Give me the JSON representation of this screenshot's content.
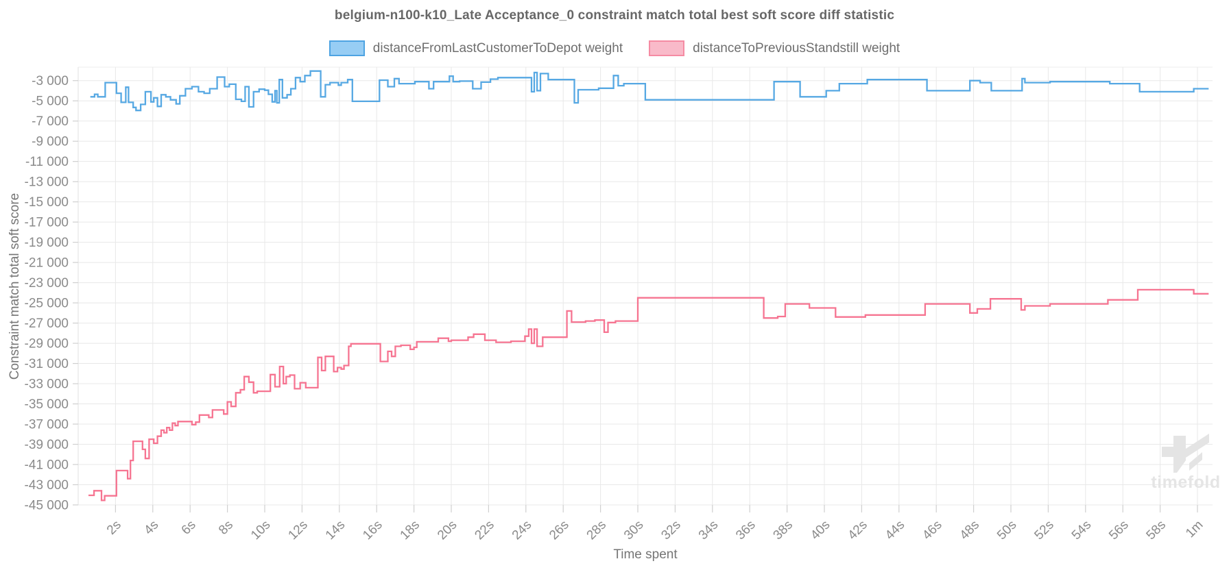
{
  "title": "belgium-n100-k10_Late Acceptance_0 constraint match total best soft score diff statistic",
  "legend": [
    {
      "label": "distanceFromLastCustomerToDepot weight",
      "fill": "#97cdf4",
      "stroke": "#4da3e2"
    },
    {
      "label": "distanceToPreviousStandstill weight",
      "fill": "#f9bac9",
      "stroke": "#f58ba3"
    }
  ],
  "y_axis_title": "Constraint match total soft score",
  "x_axis_title": "Time spent",
  "watermark": "timefold",
  "chart_data": {
    "type": "line",
    "step": true,
    "title": "belgium-n100-k10_Late Acceptance_0 constraint match total best soft score diff statistic",
    "xlabel": "Time spent",
    "ylabel": "Constraint match total soft score",
    "x_unit": "seconds",
    "x_range_seconds": [
      0,
      60.6
    ],
    "y_range": [
      -45000,
      -3000
    ],
    "grid": true,
    "legend_position": "top",
    "y_axis": {
      "tick_values": [
        -3000,
        -5000,
        -7000,
        -9000,
        -11000,
        -13000,
        -15000,
        -17000,
        -19000,
        -21000,
        -23000,
        -25000,
        -27000,
        -29000,
        -31000,
        -33000,
        -35000,
        -37000,
        -39000,
        -41000,
        -43000,
        -45000
      ],
      "tick_labels": [
        "-3 000",
        "-5 000",
        "-7 000",
        "-9 000",
        "-11 000",
        "-13 000",
        "-15 000",
        "-17 000",
        "-19 000",
        "-21 000",
        "-23 000",
        "-25 000",
        "-27 000",
        "-29 000",
        "-31 000",
        "-33 000",
        "-35 000",
        "-37 000",
        "-39 000",
        "-41 000",
        "-43 000",
        "-45 000"
      ]
    },
    "x_axis": {
      "tick_seconds": [
        2,
        4,
        6,
        8,
        10,
        12,
        14,
        16,
        18,
        20,
        22,
        24,
        26,
        28,
        30,
        32,
        34,
        36,
        38,
        40,
        42,
        44,
        46,
        48,
        50,
        52,
        54,
        56,
        58,
        60
      ],
      "tick_labels": [
        "2s",
        "4s",
        "6s",
        "8s",
        "10s",
        "12s",
        "14s",
        "16s",
        "18s",
        "20s",
        "22s",
        "24s",
        "26s",
        "28s",
        "30s",
        "32s",
        "34s",
        "36s",
        "38s",
        "40s",
        "42s",
        "44s",
        "46s",
        "48s",
        "50s",
        "52s",
        "54s",
        "56s",
        "58s",
        "1m"
      ]
    },
    "series": [
      {
        "name": "distanceFromLastCustomerToDepot weight",
        "color": "#4da3e2",
        "points": [
          [
            0.65,
            -4600
          ],
          [
            0.88,
            -4350
          ],
          [
            1.05,
            -4600
          ],
          [
            1.45,
            -3200
          ],
          [
            2.05,
            -4250
          ],
          [
            2.3,
            -5150
          ],
          [
            2.55,
            -3650
          ],
          [
            2.7,
            -5150
          ],
          [
            2.95,
            -5650
          ],
          [
            3.1,
            -5950
          ],
          [
            3.35,
            -5350
          ],
          [
            3.6,
            -4100
          ],
          [
            3.9,
            -5100
          ],
          [
            4.05,
            -4700
          ],
          [
            4.25,
            -5550
          ],
          [
            4.45,
            -4400
          ],
          [
            4.7,
            -4600
          ],
          [
            4.95,
            -4900
          ],
          [
            5.25,
            -5300
          ],
          [
            5.45,
            -4500
          ],
          [
            5.75,
            -3800
          ],
          [
            6.1,
            -3600
          ],
          [
            6.45,
            -4100
          ],
          [
            6.75,
            -4250
          ],
          [
            7.05,
            -3800
          ],
          [
            7.45,
            -2650
          ],
          [
            7.85,
            -3600
          ],
          [
            8.1,
            -3350
          ],
          [
            8.45,
            -4850
          ],
          [
            8.75,
            -5050
          ],
          [
            8.95,
            -3600
          ],
          [
            9.15,
            -5600
          ],
          [
            9.4,
            -4100
          ],
          [
            9.7,
            -3850
          ],
          [
            10.0,
            -3950
          ],
          [
            10.2,
            -4350
          ],
          [
            10.4,
            -5100
          ],
          [
            10.55,
            -4000
          ],
          [
            10.65,
            -5200
          ],
          [
            10.78,
            -2900
          ],
          [
            10.95,
            -4700
          ],
          [
            11.2,
            -4400
          ],
          [
            11.4,
            -3800
          ],
          [
            11.65,
            -2700
          ],
          [
            11.9,
            -3100
          ],
          [
            12.15,
            -2500
          ],
          [
            12.45,
            -2050
          ],
          [
            13.0,
            -4600
          ],
          [
            13.25,
            -3400
          ],
          [
            13.5,
            -3200
          ],
          [
            13.95,
            -3450
          ],
          [
            14.1,
            -3200
          ],
          [
            14.45,
            -2900
          ],
          [
            14.7,
            -5050
          ],
          [
            16.15,
            -2950
          ],
          [
            16.6,
            -3600
          ],
          [
            16.95,
            -2800
          ],
          [
            17.2,
            -3300
          ],
          [
            18.05,
            -3100
          ],
          [
            18.8,
            -3800
          ],
          [
            19.05,
            -3100
          ],
          [
            19.9,
            -2550
          ],
          [
            20.1,
            -3100
          ],
          [
            20.45,
            -3050
          ],
          [
            21.15,
            -3800
          ],
          [
            21.6,
            -3150
          ],
          [
            22.1,
            -2850
          ],
          [
            22.5,
            -2700
          ],
          [
            24.3,
            -4100
          ],
          [
            24.45,
            -2200
          ],
          [
            24.6,
            -4000
          ],
          [
            24.78,
            -2300
          ],
          [
            25.2,
            -2900
          ],
          [
            26.6,
            -5200
          ],
          [
            26.8,
            -3900
          ],
          [
            27.9,
            -3750
          ],
          [
            28.7,
            -2500
          ],
          [
            28.95,
            -3500
          ],
          [
            29.25,
            -3300
          ],
          [
            30.4,
            -4900
          ],
          [
            37.3,
            -3100
          ],
          [
            38.7,
            -4600
          ],
          [
            40.1,
            -4000
          ],
          [
            40.8,
            -3300
          ],
          [
            42.3,
            -2900
          ],
          [
            45.5,
            -4000
          ],
          [
            47.8,
            -3000
          ],
          [
            48.35,
            -3200
          ],
          [
            48.95,
            -4000
          ],
          [
            50.6,
            -2800
          ],
          [
            50.75,
            -3200
          ],
          [
            52.1,
            -3100
          ],
          [
            55.3,
            -3300
          ],
          [
            56.9,
            -4100
          ],
          [
            59.8,
            -3800
          ]
        ]
      },
      {
        "name": "distanceToPreviousStandstill weight",
        "color": "#f56d8b",
        "points": [
          [
            0.55,
            -44050
          ],
          [
            0.85,
            -43600
          ],
          [
            1.25,
            -44550
          ],
          [
            1.42,
            -44100
          ],
          [
            2.05,
            -41600
          ],
          [
            2.65,
            -42400
          ],
          [
            2.8,
            -40600
          ],
          [
            2.95,
            -38700
          ],
          [
            3.45,
            -39500
          ],
          [
            3.6,
            -40400
          ],
          [
            3.8,
            -38500
          ],
          [
            4.05,
            -38900
          ],
          [
            4.25,
            -38200
          ],
          [
            4.45,
            -37600
          ],
          [
            4.6,
            -37850
          ],
          [
            4.75,
            -37350
          ],
          [
            4.9,
            -37600
          ],
          [
            5.05,
            -36900
          ],
          [
            5.2,
            -37150
          ],
          [
            5.35,
            -36750
          ],
          [
            6.1,
            -37050
          ],
          [
            6.3,
            -36800
          ],
          [
            6.5,
            -36100
          ],
          [
            7.0,
            -36350
          ],
          [
            7.2,
            -35600
          ],
          [
            7.8,
            -36000
          ],
          [
            8.0,
            -34800
          ],
          [
            8.2,
            -35250
          ],
          [
            8.45,
            -33900
          ],
          [
            8.7,
            -33600
          ],
          [
            8.9,
            -32300
          ],
          [
            9.15,
            -32850
          ],
          [
            9.4,
            -33900
          ],
          [
            9.6,
            -33750
          ],
          [
            10.3,
            -32100
          ],
          [
            10.55,
            -33300
          ],
          [
            10.8,
            -31300
          ],
          [
            11.0,
            -33000
          ],
          [
            11.15,
            -32300
          ],
          [
            11.35,
            -32150
          ],
          [
            11.6,
            -33500
          ],
          [
            11.9,
            -32900
          ],
          [
            12.2,
            -33400
          ],
          [
            12.85,
            -30400
          ],
          [
            13.05,
            -31700
          ],
          [
            13.25,
            -30300
          ],
          [
            13.7,
            -31800
          ],
          [
            13.9,
            -31400
          ],
          [
            14.1,
            -31550
          ],
          [
            14.25,
            -31200
          ],
          [
            14.5,
            -29300
          ],
          [
            14.62,
            -29050
          ],
          [
            16.2,
            -30800
          ],
          [
            16.6,
            -29800
          ],
          [
            16.8,
            -30300
          ],
          [
            17.0,
            -29300
          ],
          [
            17.3,
            -29200
          ],
          [
            17.8,
            -29600
          ],
          [
            18.0,
            -29400
          ],
          [
            18.15,
            -28850
          ],
          [
            19.3,
            -28500
          ],
          [
            19.85,
            -28800
          ],
          [
            20.0,
            -28700
          ],
          [
            20.9,
            -28400
          ],
          [
            21.2,
            -28100
          ],
          [
            21.8,
            -28700
          ],
          [
            22.4,
            -28900
          ],
          [
            23.2,
            -28800
          ],
          [
            23.95,
            -28300
          ],
          [
            24.15,
            -27600
          ],
          [
            24.3,
            -29000
          ],
          [
            24.45,
            -27600
          ],
          [
            24.6,
            -29300
          ],
          [
            24.9,
            -28400
          ],
          [
            26.2,
            -25800
          ],
          [
            26.45,
            -26900
          ],
          [
            27.2,
            -26800
          ],
          [
            27.7,
            -26700
          ],
          [
            28.2,
            -27900
          ],
          [
            28.4,
            -26950
          ],
          [
            28.8,
            -26800
          ],
          [
            30.0,
            -24500
          ],
          [
            36.75,
            -26500
          ],
          [
            37.5,
            -26350
          ],
          [
            37.9,
            -25100
          ],
          [
            39.2,
            -25500
          ],
          [
            40.6,
            -26400
          ],
          [
            42.2,
            -26200
          ],
          [
            45.4,
            -25100
          ],
          [
            47.8,
            -26000
          ],
          [
            48.2,
            -25600
          ],
          [
            48.9,
            -24600
          ],
          [
            50.55,
            -25700
          ],
          [
            50.75,
            -25300
          ],
          [
            52.1,
            -25100
          ],
          [
            55.2,
            -24700
          ],
          [
            56.8,
            -23700
          ],
          [
            59.8,
            -24100
          ]
        ]
      }
    ]
  }
}
